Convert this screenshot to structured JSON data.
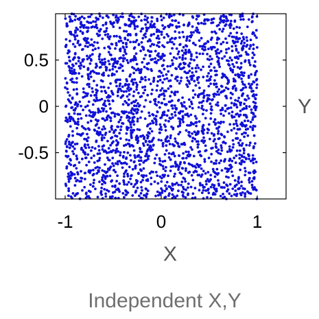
{
  "chart_data": {
    "type": "scatter",
    "title": "Independent X,Y",
    "xlabel": "X",
    "ylabel": "Y",
    "xlim": [
      -1.1,
      1.3
    ],
    "ylim": [
      -1.0,
      1.0
    ],
    "grid": false,
    "legend": "none",
    "x_ticks": [
      {
        "value": -1,
        "label": "-1"
      },
      {
        "value": 0,
        "label": "0"
      },
      {
        "value": 1,
        "label": "1"
      }
    ],
    "y_ticks": [
      {
        "value": 0.5,
        "label": "0.5"
      },
      {
        "value": 0,
        "label": "0"
      },
      {
        "value": -0.5,
        "label": "-0.5"
      }
    ],
    "series": [
      {
        "distribution": "uniform, independent",
        "x_range": [
          -1,
          1
        ],
        "y_range": [
          -1,
          1
        ],
        "approx_point_count": 2500,
        "color": "#1010d8",
        "marker": "dot"
      }
    ]
  }
}
